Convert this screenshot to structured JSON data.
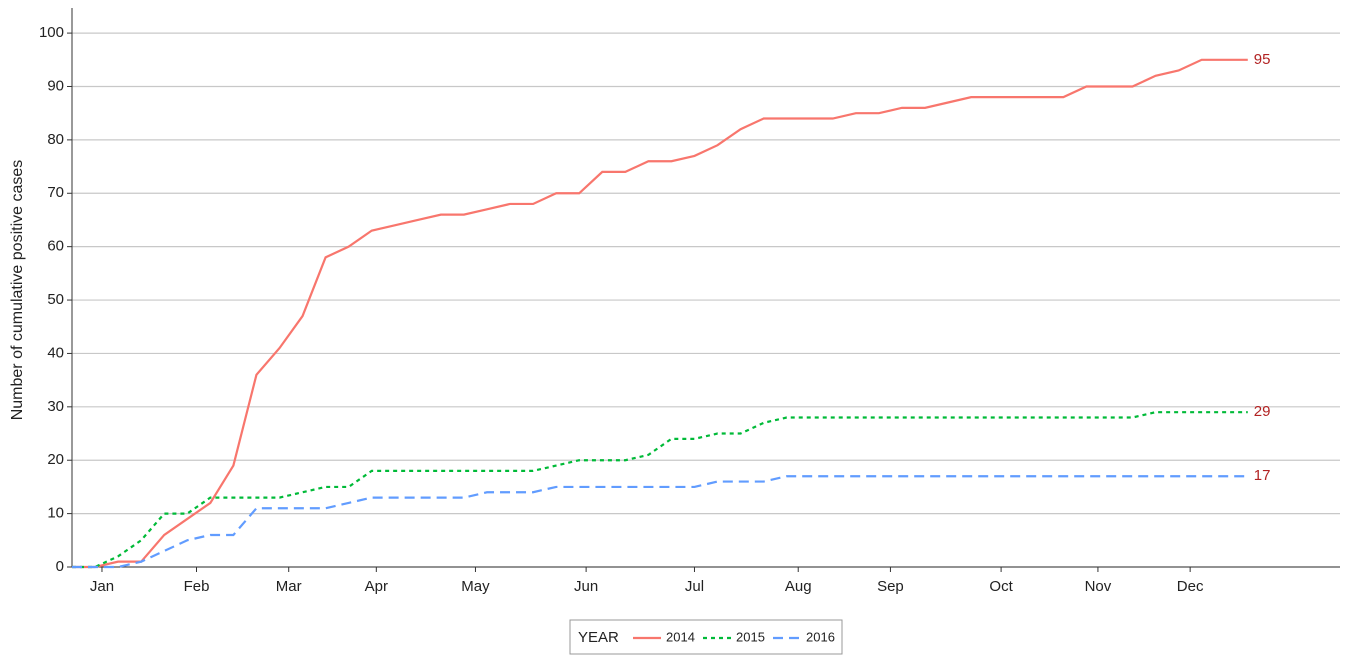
{
  "chart_data": {
    "type": "line",
    "y_label": "Number of cumulative positive cases",
    "legend_title": "YEAR",
    "legend": "bottom",
    "grid": true,
    "x": [
      1,
      2,
      3,
      4,
      5,
      6,
      7,
      8,
      9,
      10,
      11,
      12,
      13,
      14,
      15,
      16,
      17,
      18,
      19,
      20,
      21,
      22,
      23,
      24,
      25,
      26,
      27,
      28,
      29,
      30,
      31,
      32,
      33,
      34,
      35,
      36,
      37,
      38,
      39,
      40,
      41,
      42,
      43,
      44,
      45,
      46,
      47,
      48,
      49,
      50,
      51,
      52
    ],
    "xlim": [
      1,
      56
    ],
    "xticks": [
      {
        "value": 2.3,
        "label": "Jan"
      },
      {
        "value": 6.4,
        "label": "Feb"
      },
      {
        "value": 10.4,
        "label": "Mar"
      },
      {
        "value": 14.2,
        "label": "Apr"
      },
      {
        "value": 18.5,
        "label": "May"
      },
      {
        "value": 23.3,
        "label": "Jun"
      },
      {
        "value": 28.0,
        "label": "Jul"
      },
      {
        "value": 32.5,
        "label": "Aug"
      },
      {
        "value": 36.5,
        "label": "Sep"
      },
      {
        "value": 41.3,
        "label": "Oct"
      },
      {
        "value": 45.5,
        "label": "Nov"
      },
      {
        "value": 49.5,
        "label": "Dec"
      }
    ],
    "ylim": [
      0,
      104.7
    ],
    "yticks": [
      0,
      10,
      20,
      30,
      40,
      50,
      60,
      70,
      80,
      90,
      100
    ],
    "series": [
      {
        "name": "2014",
        "color": "#f8766d",
        "dash": "solid",
        "values": [
          0,
          0,
          1,
          1,
          6,
          9,
          12,
          19,
          36,
          41,
          47,
          58,
          60,
          63,
          64,
          65,
          66,
          66,
          67,
          68,
          68,
          70,
          70,
          74,
          74,
          76,
          76,
          77,
          79,
          82,
          84,
          84,
          84,
          84,
          85,
          85,
          86,
          86,
          87,
          88,
          88,
          88,
          88,
          88,
          90,
          90,
          90,
          92,
          93,
          95,
          95,
          95
        ]
      },
      {
        "name": "2015",
        "color": "#00ba38",
        "dash": "dotted",
        "values": [
          0,
          0,
          2,
          5,
          10,
          10,
          13,
          13,
          13,
          13,
          14,
          15,
          15,
          18,
          18,
          18,
          18,
          18,
          18,
          18,
          18,
          19,
          20,
          20,
          20,
          21,
          24,
          24,
          25,
          25,
          27,
          28,
          28,
          28,
          28,
          28,
          28,
          28,
          28,
          28,
          28,
          28,
          28,
          28,
          28,
          28,
          28,
          29,
          29,
          29,
          29,
          29
        ]
      },
      {
        "name": "2016",
        "color": "#619cff",
        "dash": "dashed",
        "values": [
          0,
          0,
          0,
          1,
          3,
          5,
          6,
          6,
          11,
          11,
          11,
          11,
          12,
          13,
          13,
          13,
          13,
          13,
          14,
          14,
          14,
          15,
          15,
          15,
          15,
          15,
          15,
          15,
          16,
          16,
          16,
          17,
          17,
          17,
          17,
          17,
          17,
          17,
          17,
          17,
          17,
          17,
          17,
          17,
          17,
          17,
          17,
          17,
          17,
          17,
          17,
          17
        ]
      }
    ]
  }
}
